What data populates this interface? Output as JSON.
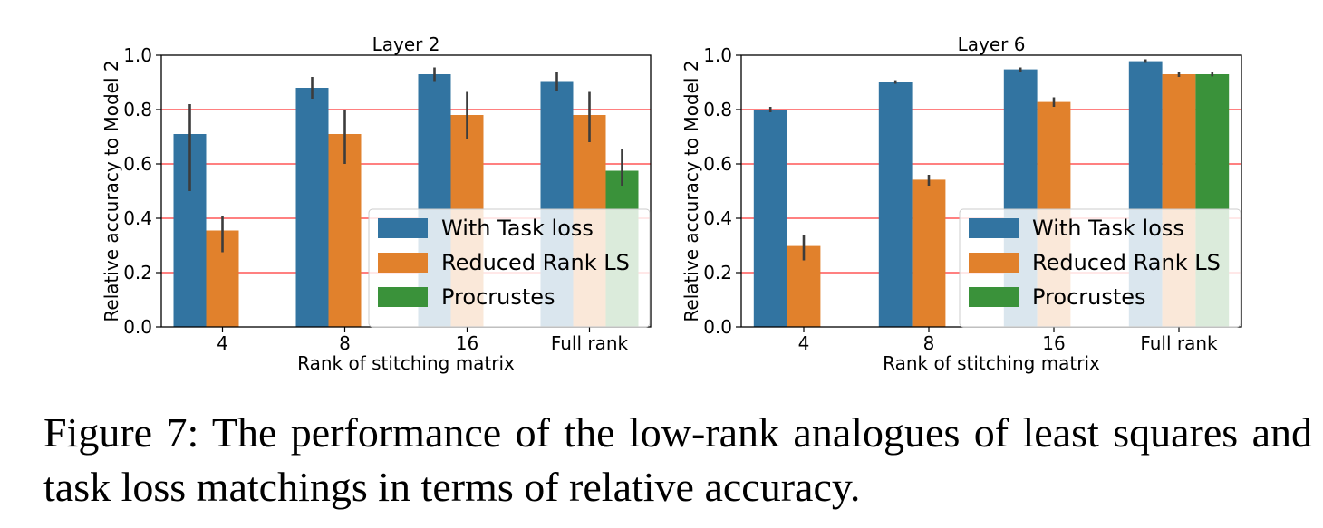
{
  "colors": {
    "with_task_loss": "#3274a1",
    "reduced_rank_ls": "#e1812c",
    "procrustes": "#3a923a",
    "grid": "#ff0000",
    "error_bar": "#3c3c3c"
  },
  "chart_data": [
    {
      "type": "bar",
      "title": "Layer 2",
      "xlabel": "Rank of stitching matrix",
      "ylabel": "Relative accuracy to Model 2",
      "categories": [
        "4",
        "8",
        "16",
        "Full rank"
      ],
      "ylim": [
        0.0,
        1.0
      ],
      "yticks": [
        "0.0",
        "0.2",
        "0.4",
        "0.6",
        "0.8",
        "1.0"
      ],
      "grid": "horizontal red lines at 0.2, 0.4, 0.6, 0.8",
      "legend_position": "lower right",
      "series": [
        {
          "name": "With Task loss",
          "values": [
            0.71,
            0.88,
            0.93,
            0.905
          ],
          "err_low": [
            0.5,
            0.84,
            0.905,
            0.87
          ],
          "err_high": [
            0.82,
            0.92,
            0.955,
            0.94
          ]
        },
        {
          "name": "Reduced Rank LS",
          "values": [
            0.355,
            0.71,
            0.78,
            0.78
          ],
          "err_low": [
            0.275,
            0.6,
            0.69,
            0.68
          ],
          "err_high": [
            0.41,
            0.8,
            0.865,
            0.865
          ]
        },
        {
          "name": "Procrustes",
          "values": [
            null,
            null,
            null,
            0.575
          ],
          "err_low": [
            null,
            null,
            null,
            0.52
          ],
          "err_high": [
            null,
            null,
            null,
            0.655
          ]
        }
      ]
    },
    {
      "type": "bar",
      "title": "Layer 6",
      "xlabel": "Rank of stitching matrix",
      "ylabel": "Relative accuracy to Model 2",
      "categories": [
        "4",
        "8",
        "16",
        "Full rank"
      ],
      "ylim": [
        0.0,
        1.0
      ],
      "yticks": [
        "0.0",
        "0.2",
        "0.4",
        "0.6",
        "0.8",
        "1.0"
      ],
      "grid": "horizontal red lines at 0.2, 0.4, 0.6, 0.8",
      "legend_position": "lower right",
      "series": [
        {
          "name": "With Task loss",
          "values": [
            0.8,
            0.9,
            0.948,
            0.978
          ],
          "err_low": [
            0.79,
            0.895,
            0.94,
            0.972
          ],
          "err_high": [
            0.81,
            0.908,
            0.955,
            0.985
          ]
        },
        {
          "name": "Reduced Rank LS",
          "values": [
            0.298,
            0.542,
            0.828,
            0.93
          ],
          "err_low": [
            0.245,
            0.52,
            0.81,
            0.92
          ],
          "err_high": [
            0.34,
            0.56,
            0.845,
            0.94
          ]
        },
        {
          "name": "Procrustes",
          "values": [
            null,
            null,
            null,
            0.93
          ],
          "err_low": [
            null,
            null,
            null,
            0.922
          ],
          "err_high": [
            null,
            null,
            null,
            0.938
          ]
        }
      ]
    }
  ],
  "caption": "Figure 7: The performance of the low-rank analogues of least squares and task loss matchings in terms of relative accuracy."
}
